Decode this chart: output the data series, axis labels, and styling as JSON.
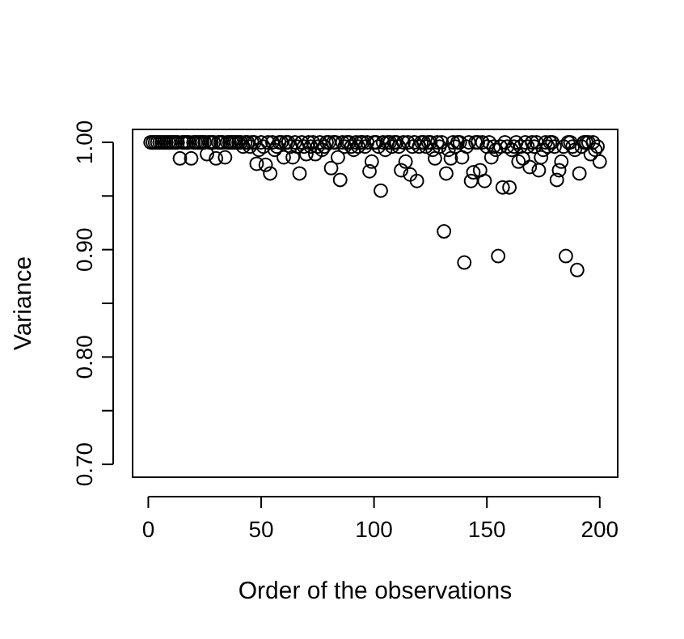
{
  "chart_data": {
    "type": "scatter",
    "xlabel": "Order of the observations",
    "ylabel": "Variance",
    "marker": "circle",
    "grid": false,
    "xlim": [
      -6.96,
      207.96
    ],
    "ylim": [
      0.688,
      1.012
    ],
    "xticks": [
      0,
      50,
      100,
      150,
      200
    ],
    "yticks": [
      {
        "value": 0.7,
        "label": "0.70"
      },
      {
        "value": 0.75,
        "label": null
      },
      {
        "value": 0.8,
        "label": "0.80"
      },
      {
        "value": 0.85,
        "label": null
      },
      {
        "value": 0.9,
        "label": "0.90"
      },
      {
        "value": 0.95,
        "label": null
      },
      {
        "value": 1,
        "label": "1.00"
      }
    ],
    "series": [
      {
        "color": "#000000",
        "x": [
          1,
          2,
          3,
          4,
          5,
          6,
          7,
          8,
          9,
          10,
          11,
          12,
          13,
          14,
          15,
          16,
          17,
          18,
          19,
          20,
          21,
          22,
          23,
          24,
          25,
          26,
          27,
          28,
          29,
          30,
          31,
          32,
          33,
          34,
          35,
          36,
          37,
          38,
          39,
          40,
          41,
          42,
          43,
          44,
          45,
          46,
          47,
          48,
          49,
          50,
          51,
          52,
          53,
          54,
          55,
          56,
          57,
          58,
          59,
          60,
          61,
          62,
          63,
          64,
          65,
          66,
          67,
          68,
          69,
          70,
          71,
          72,
          73,
          74,
          75,
          76,
          77,
          78,
          79,
          80,
          81,
          82,
          83,
          84,
          85,
          86,
          87,
          88,
          89,
          90,
          91,
          92,
          93,
          94,
          95,
          96,
          97,
          98,
          99,
          100,
          101,
          102,
          103,
          104,
          105,
          106,
          107,
          108,
          109,
          110,
          111,
          112,
          113,
          114,
          115,
          116,
          117,
          118,
          119,
          120,
          121,
          122,
          123,
          124,
          125,
          126,
          127,
          128,
          129,
          130,
          131,
          132,
          133,
          134,
          135,
          136,
          137,
          138,
          139,
          140,
          141,
          142,
          143,
          144,
          145,
          146,
          147,
          148,
          149,
          150,
          151,
          152,
          153,
          154,
          155,
          156,
          157,
          158,
          159,
          160,
          161,
          162,
          163,
          164,
          165,
          166,
          167,
          168,
          169,
          170,
          171,
          172,
          173,
          174,
          175,
          176,
          177,
          178,
          179,
          180,
          181,
          182,
          183,
          184,
          185,
          186,
          187,
          188,
          189,
          190,
          191,
          192,
          193,
          194,
          195,
          196,
          197,
          198,
          199,
          200
        ],
        "values": [
          1,
          1,
          1,
          1,
          1,
          1,
          1,
          1,
          1,
          1,
          1,
          1,
          1,
          0.985,
          1,
          1,
          1,
          1,
          0.985,
          1,
          1,
          1,
          1,
          1,
          1,
          0.989,
          1,
          1,
          1,
          0.985,
          1,
          1,
          1,
          0.986,
          1,
          1,
          1,
          1,
          1,
          1,
          1,
          0.996,
          1,
          1,
          0.996,
          1,
          1,
          0.98,
          0.993,
          1,
          0.996,
          0.979,
          1,
          0.971,
          1,
          0.993,
          0.996,
          1,
          1,
          0.986,
          1,
          1,
          0.996,
          0.986,
          1,
          0.996,
          0.971,
          1,
          0.996,
          0.989,
          1,
          0.996,
          1,
          0.989,
          0.996,
          1,
          0.993,
          0.996,
          1,
          1,
          0.976,
          1,
          1,
          0.986,
          0.965,
          1,
          0.996,
          1,
          1,
          0.996,
          0.993,
          1,
          0.996,
          1,
          1,
          0.996,
          1,
          0.973,
          0.982,
          1,
          1,
          0.996,
          0.955,
          1,
          0.993,
          1,
          1,
          0.996,
          1,
          1,
          0.996,
          0.974,
          1,
          0.982,
          1,
          0.97,
          0.996,
          1,
          0.964,
          0.996,
          1,
          1,
          0.996,
          1,
          1,
          0.993,
          0.985,
          1,
          0.996,
          1,
          0.917,
          0.971,
          0.993,
          0.985,
          1,
          0.996,
          1,
          1,
          0.986,
          0.888,
          0.996,
          1,
          0.964,
          0.972,
          1,
          1,
          0.974,
          1,
          0.964,
          0.996,
          1,
          0.986,
          0.996,
          0.993,
          0.894,
          0.996,
          0.958,
          1,
          0.996,
          0.958,
          0.993,
          0.996,
          1,
          0.982,
          0.996,
          0.985,
          1,
          0.996,
          0.977,
          1,
          0.996,
          1,
          0.974,
          0.986,
          0.993,
          1,
          0.996,
          1,
          1,
          0.996,
          0.965,
          0.974,
          0.982,
          0.996,
          0.894,
          1,
          1,
          0.996,
          0.993,
          0.881,
          0.971,
          0.996,
          1,
          1,
          1,
          0.989,
          1,
          0.993,
          0.996,
          0.982
        ]
      }
    ]
  }
}
